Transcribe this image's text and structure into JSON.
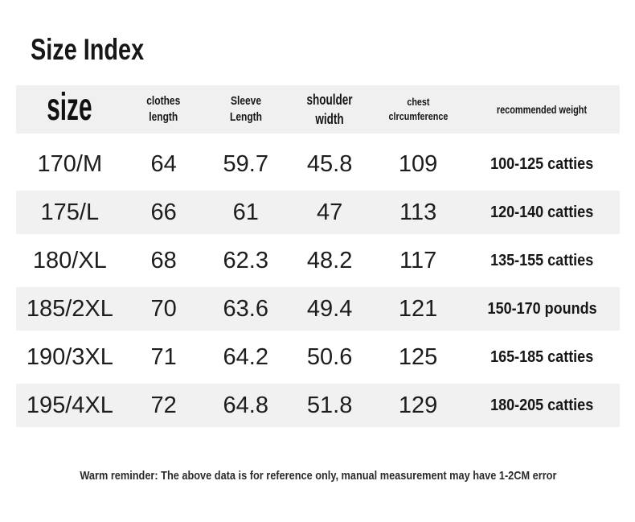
{
  "page": {
    "title": "Size Index",
    "footer": "Warm reminder: The above data is for reference only, manual measurement may have 1-2CM error"
  },
  "colors": {
    "header_bg": "#f0f0f0",
    "stripe_bg": "#f1f1f1",
    "text": "#1d1d1d"
  },
  "table": {
    "header": {
      "size": "size",
      "clothes_line1": "clothes",
      "clothes_line2": "length",
      "sleeve_line1": "Sleeve",
      "sleeve_line2": "Length",
      "shoulder_line1": "shoulder",
      "shoulder_line2": "width",
      "chest_line1": "chest",
      "chest_line2": "clrcumference",
      "weight": "recommended weight"
    },
    "rows": [
      {
        "size": "170/M",
        "clothes_length": "64",
        "sleeve_length": "59.7",
        "shoulder_width": "45.8",
        "chest": "109",
        "weight": "100-125 catties"
      },
      {
        "size": "175/L",
        "clothes_length": "66",
        "sleeve_length": "61",
        "shoulder_width": "47",
        "chest": "113",
        "weight": "120-140 catties"
      },
      {
        "size": "180/XL",
        "clothes_length": "68",
        "sleeve_length": "62.3",
        "shoulder_width": "48.2",
        "chest": "117",
        "weight": "135-155 catties"
      },
      {
        "size": "185/2XL",
        "clothes_length": "70",
        "sleeve_length": "63.6",
        "shoulder_width": "49.4",
        "chest": "121",
        "weight": "150-170 pounds"
      },
      {
        "size": "190/3XL",
        "clothes_length": "71",
        "sleeve_length": "64.2",
        "shoulder_width": "50.6",
        "chest": "125",
        "weight": "165-185 catties"
      },
      {
        "size": "195/4XL",
        "clothes_length": "72",
        "sleeve_length": "64.8",
        "shoulder_width": "51.8",
        "chest": "129",
        "weight": "180-205 catties"
      }
    ]
  },
  "chart_data": {
    "type": "table",
    "title": "Size Index",
    "columns": [
      "size",
      "clothes length",
      "Sleeve Length",
      "shoulder width",
      "chest clrcumference",
      "recommended weight"
    ],
    "rows": [
      [
        "170/M",
        64,
        59.7,
        45.8,
        109,
        "100-125 catties"
      ],
      [
        "175/L",
        66,
        61,
        47,
        113,
        "120-140 catties"
      ],
      [
        "180/XL",
        68,
        62.3,
        48.2,
        117,
        "135-155 catties"
      ],
      [
        "185/2XL",
        70,
        63.6,
        49.4,
        121,
        "150-170 pounds"
      ],
      [
        "190/3XL",
        71,
        64.2,
        50.6,
        125,
        "165-185 catties"
      ],
      [
        "195/4XL",
        72,
        64.8,
        51.8,
        129,
        "180-205 catties"
      ]
    ],
    "note": "Warm reminder: The above data is for reference only, manual measurement may have 1-2CM error",
    "layout_hints": {
      "header_background": "#f0f0f0",
      "striped_rows": [
        1,
        3,
        5
      ],
      "stripe_color": "#f1f1f1"
    }
  }
}
